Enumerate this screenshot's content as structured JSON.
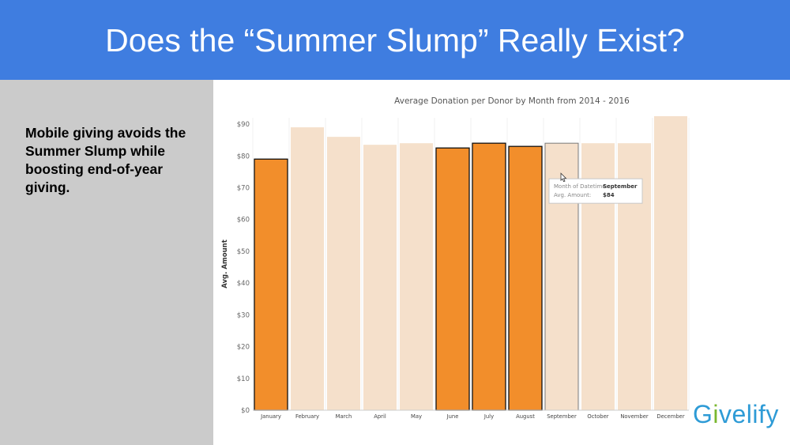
{
  "slide": {
    "title": "Does the “Summer Slump” Really Exist?",
    "note": "Mobile giving avoids the Summer Slump while boosting end-of-year giving."
  },
  "logo": {
    "first": "G",
    "accent": "i",
    "rest": "velify",
    "colors": {
      "blue": "#2e9bd6",
      "green": "#79b72f"
    }
  },
  "tooltip": {
    "rows": [
      {
        "label": "Month of Datetime:",
        "value": "September"
      },
      {
        "label": "Avg. Amount:",
        "value": "$84"
      }
    ],
    "icon": "pointer-hand-icon"
  },
  "colors": {
    "header": "#3f7de0",
    "panel": "#cbcbcb",
    "highlight": "#f28e2b",
    "faded": "#f5e0cb"
  },
  "chart_data": {
    "type": "bar",
    "title": "Average Donation per Donor by Month from 2014 - 2016",
    "xlabel": "",
    "ylabel": "Avg. Amount",
    "categories": [
      "January",
      "February",
      "March",
      "April",
      "May",
      "June",
      "July",
      "August",
      "September",
      "October",
      "November",
      "December"
    ],
    "values": [
      79,
      89,
      86,
      83.5,
      84,
      82.5,
      84,
      83,
      84,
      84,
      84,
      92.5
    ],
    "highlighted": [
      true,
      false,
      false,
      false,
      false,
      true,
      true,
      true,
      false,
      false,
      false,
      false
    ],
    "selected": "September",
    "ylim": [
      0,
      92
    ],
    "yticks": [
      0,
      10,
      20,
      30,
      40,
      50,
      60,
      70,
      80,
      90
    ],
    "ytick_labels": [
      "$0",
      "$10",
      "$20",
      "$30",
      "$40",
      "$50",
      "$60",
      "$70",
      "$80",
      "$90"
    ],
    "grid": "vertical",
    "legend": "none"
  }
}
